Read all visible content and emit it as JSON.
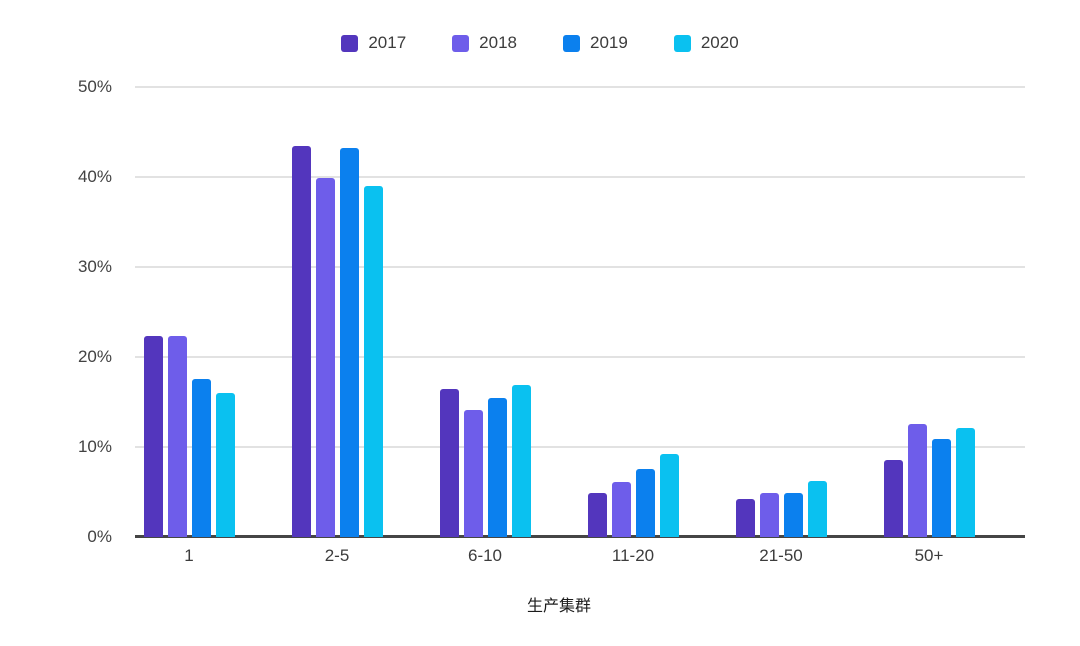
{
  "chart_data": {
    "type": "bar",
    "title": "",
    "xlabel": "生产集群",
    "ylabel": "",
    "categories": [
      "1",
      "2-5",
      "6-10",
      "11-20",
      "21-50",
      "50+"
    ],
    "series": [
      {
        "name": "2017",
        "color": "#5336bd",
        "values": [
          22.3,
          43.4,
          16.4,
          4.9,
          4.2,
          8.6
        ]
      },
      {
        "name": "2018",
        "color": "#6e5dea",
        "values": [
          22.3,
          39.9,
          14.1,
          6.1,
          4.9,
          12.6
        ]
      },
      {
        "name": "2019",
        "color": "#0b80ee",
        "values": [
          17.6,
          43.2,
          15.5,
          7.6,
          4.9,
          10.9
        ]
      },
      {
        "name": "2020",
        "color": "#0ac1f0",
        "values": [
          16.0,
          39.0,
          16.9,
          9.2,
          6.2,
          12.1
        ]
      }
    ],
    "ylim": [
      0,
      50
    ],
    "ytick_labels": [
      "0%",
      "10%",
      "20%",
      "30%",
      "40%",
      "50%"
    ],
    "grid": true,
    "legend_position": "top"
  },
  "colors": {
    "background": "#ffffff",
    "gridline": "#e2e2e2",
    "axis_line": "#454545",
    "tick_text": "#424242",
    "legend_text": "#3c3c3c"
  }
}
